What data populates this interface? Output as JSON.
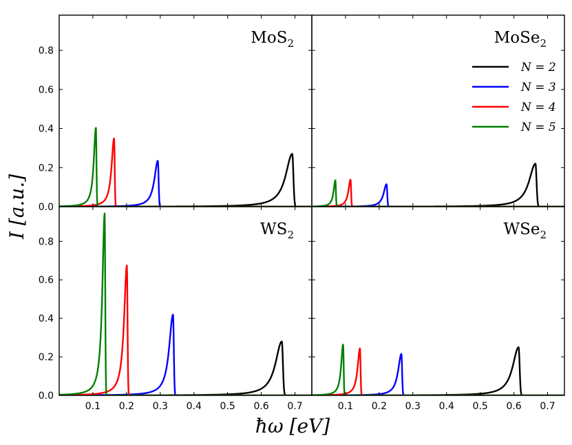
{
  "chart_data": {
    "type": "line",
    "ylabel": "I [a.u.]",
    "xlabel": "ħω [eV]",
    "xlim": [
      0.0,
      0.75
    ],
    "ylim": [
      0.0,
      0.98
    ],
    "x_ticks": [
      "0.1",
      "0.2",
      "0.3",
      "0.4",
      "0.5",
      "0.6",
      "0.7"
    ],
    "x_tick_values": [
      0.1,
      0.2,
      0.3,
      0.4,
      0.5,
      0.6,
      0.7
    ],
    "y_ticks": [
      "0.0",
      "0.2",
      "0.4",
      "0.6",
      "0.8"
    ],
    "y_tick_values": [
      0.0,
      0.2,
      0.4,
      0.6,
      0.8
    ],
    "legend": [
      {
        "label": "N = 2",
        "color": "#000000"
      },
      {
        "label": "N = 3",
        "color": "#0000ff"
      },
      {
        "label": "N = 4",
        "color": "#ff0000"
      },
      {
        "label": "N = 5",
        "color": "#008000"
      }
    ],
    "panels": [
      {
        "title_main": "MoS",
        "title_sub": "2",
        "peaks": [
          {
            "series": "N = 2",
            "color": "#000000",
            "center": 0.692,
            "height": 0.27
          },
          {
            "series": "N = 3",
            "color": "#0000ff",
            "center": 0.293,
            "height": 0.235
          },
          {
            "series": "N = 4",
            "color": "#ff0000",
            "center": 0.163,
            "height": 0.35
          },
          {
            "series": "N = 5",
            "color": "#008000",
            "center": 0.109,
            "height": 0.405
          }
        ]
      },
      {
        "title_main": "MoSe",
        "title_sub": "2",
        "peaks": [
          {
            "series": "N = 2",
            "color": "#000000",
            "center": 0.664,
            "height": 0.22
          },
          {
            "series": "N = 3",
            "color": "#0000ff",
            "center": 0.222,
            "height": 0.115
          },
          {
            "series": "N = 4",
            "color": "#ff0000",
            "center": 0.115,
            "height": 0.138
          },
          {
            "series": "N = 5",
            "color": "#008000",
            "center": 0.07,
            "height": 0.135
          }
        ]
      },
      {
        "title_main": "WS",
        "title_sub": "2",
        "peaks": [
          {
            "series": "N = 2",
            "color": "#000000",
            "center": 0.661,
            "height": 0.28
          },
          {
            "series": "N = 3",
            "color": "#0000ff",
            "center": 0.338,
            "height": 0.42
          },
          {
            "series": "N = 4",
            "color": "#ff0000",
            "center": 0.201,
            "height": 0.675
          },
          {
            "series": "N = 5",
            "color": "#008000",
            "center": 0.135,
            "height": 0.945
          }
        ]
      },
      {
        "title_main": "WSe",
        "title_sub": "2",
        "peaks": [
          {
            "series": "N = 2",
            "color": "#000000",
            "center": 0.614,
            "height": 0.25
          },
          {
            "series": "N = 3",
            "color": "#0000ff",
            "center": 0.266,
            "height": 0.215
          },
          {
            "series": "N = 4",
            "color": "#ff0000",
            "center": 0.143,
            "height": 0.245
          },
          {
            "series": "N = 5",
            "color": "#008000",
            "center": 0.093,
            "height": 0.265
          }
        ]
      }
    ]
  }
}
